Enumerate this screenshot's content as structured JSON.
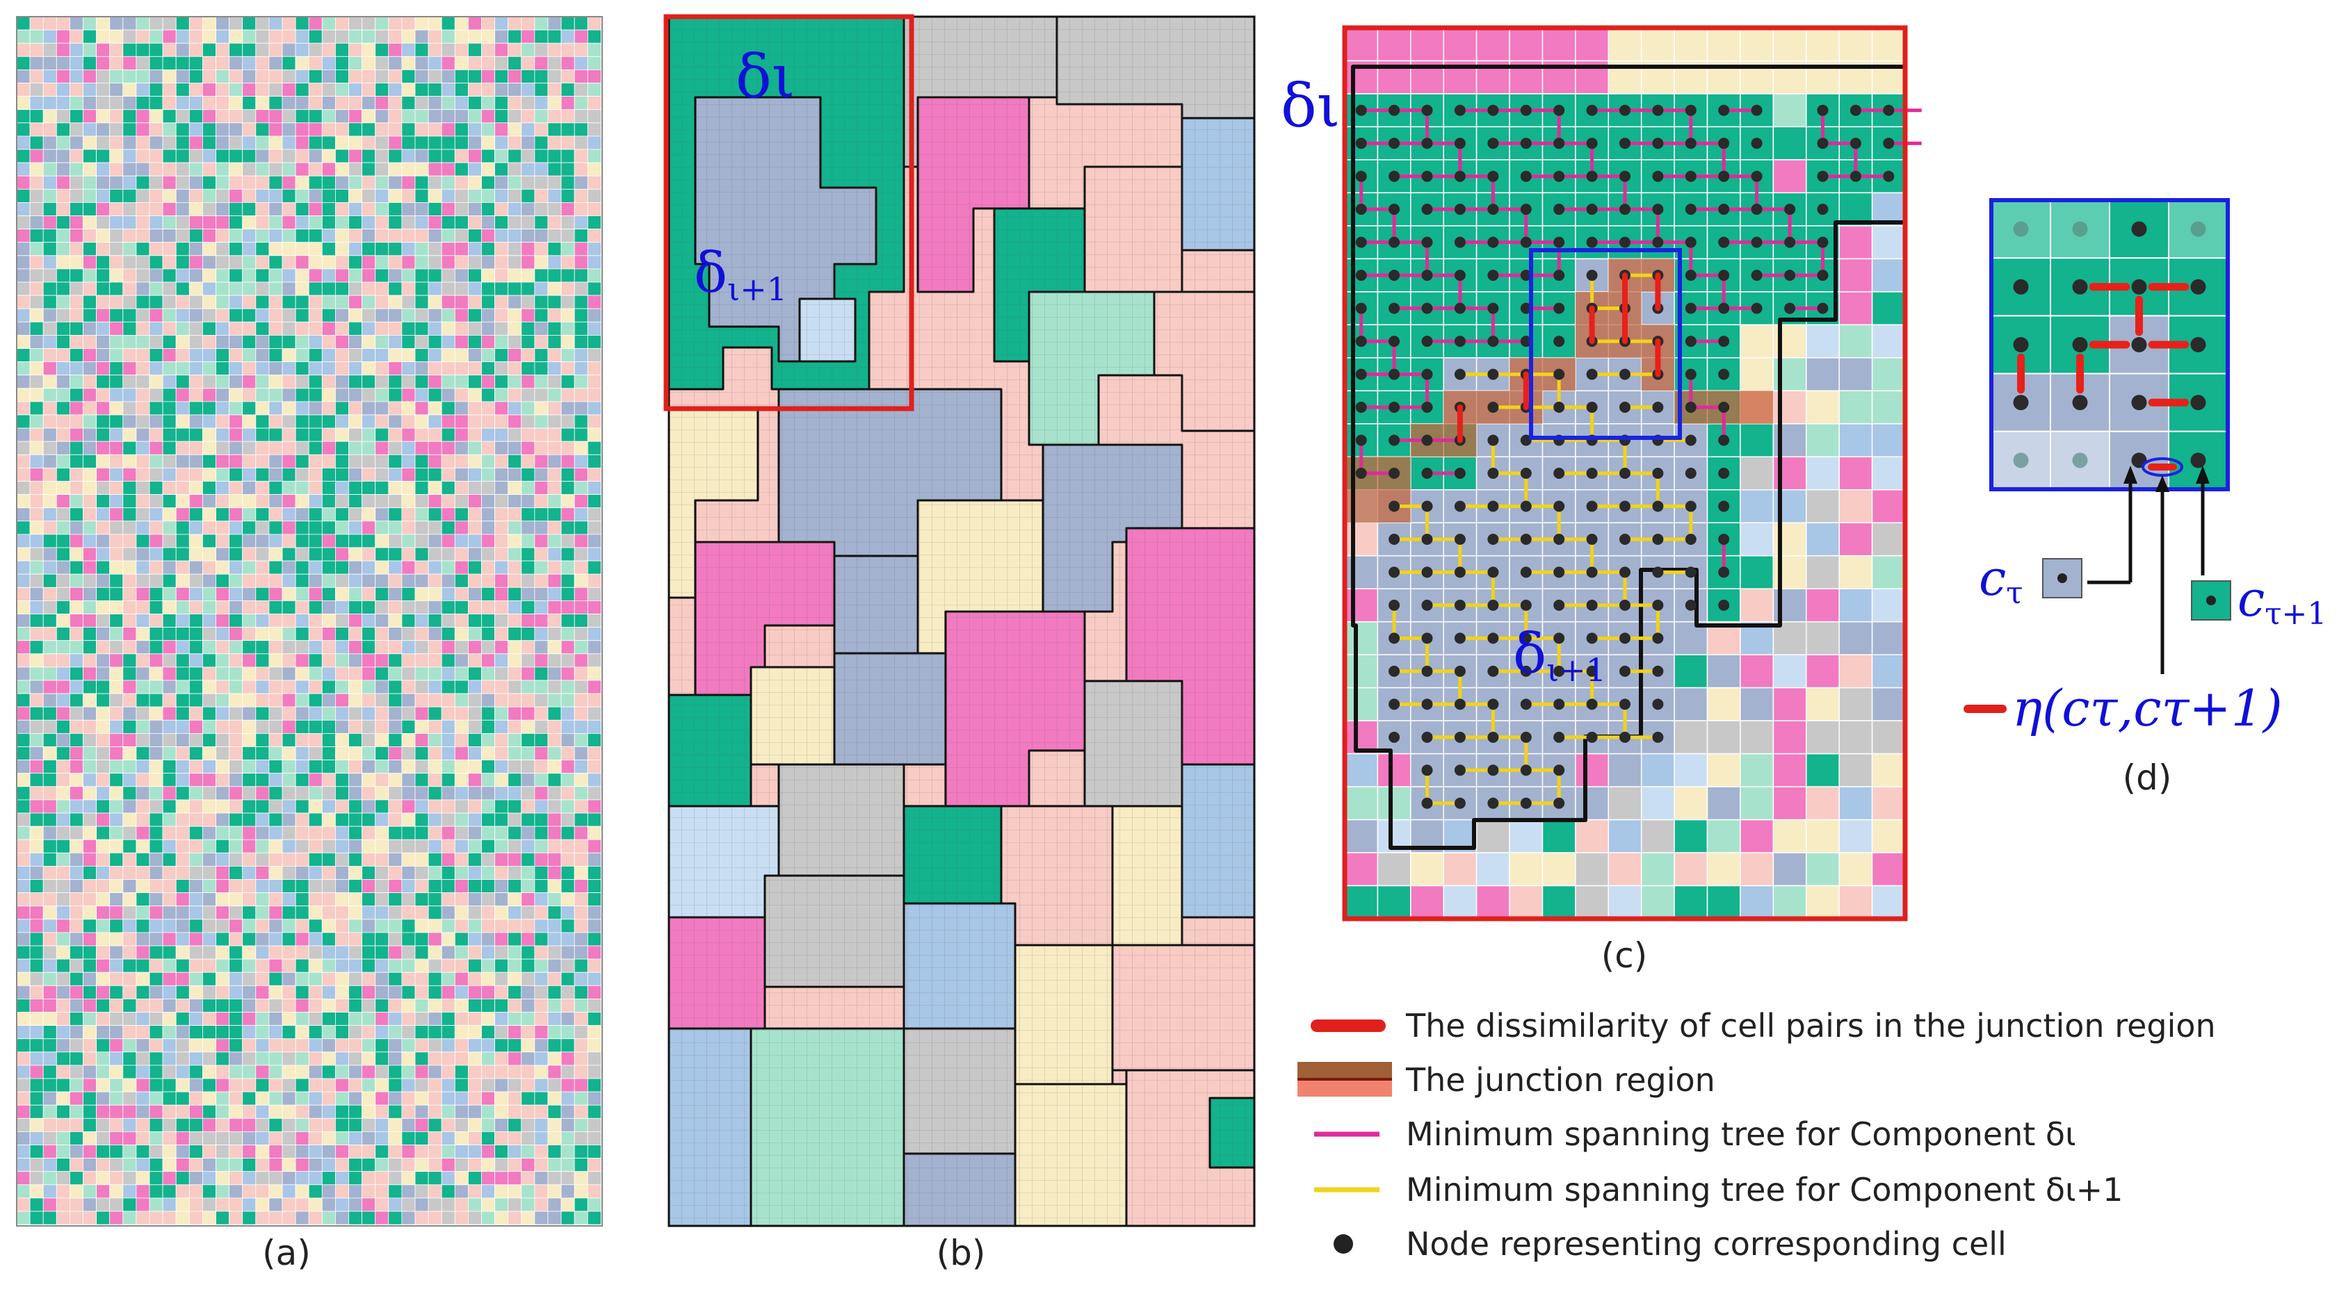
{
  "figure": {
    "panels": [
      {
        "id": "a",
        "caption": "(a)",
        "description_label": "pixel-grid"
      },
      {
        "id": "b",
        "caption": "(b)",
        "description_label": "segmented-components"
      },
      {
        "id": "c",
        "caption": "(c)",
        "description_label": "zoomed-junction"
      },
      {
        "id": "d",
        "caption": "(d)",
        "description_label": "cell-pair-detail"
      }
    ],
    "component_labels": {
      "delta_i": "δι",
      "delta_i1_base": "δ",
      "delta_i1_sub": "ι+1"
    },
    "cell_labels": {
      "c_tau_base": "c",
      "c_tau_sub": "τ",
      "c_tau1_base": "c",
      "c_tau1_sub": "τ+1",
      "eta": "η(cτ,cτ+1)"
    },
    "legend": [
      {
        "text": "The dissimilarity of cell pairs in the junction region",
        "marker": "red-thick-line"
      },
      {
        "text": "The junction region",
        "marker": "brown-band"
      },
      {
        "text": "Minimum spanning tree for Component δι",
        "marker": "magenta-line"
      },
      {
        "text": "Minimum spanning tree for Component δι+1",
        "marker": "yellow-line"
      },
      {
        "text": "Node representing corresponding cell",
        "marker": "black-dot"
      }
    ],
    "palette": {
      "green": "#12b38d",
      "pink": "#f27ac0",
      "peach": "#f8cbc4",
      "cream": "#f8ecc4",
      "blue": "#a8c6e6",
      "mint": "#a7e3cc",
      "gray": "#c8c8c8",
      "slate": "#a3b2cf",
      "frame": "#e0201c",
      "select": "#1a22e0",
      "mst_a": "#e02a9a",
      "mst_b": "#f2d21a",
      "junction": "#b06a3c"
    }
  }
}
